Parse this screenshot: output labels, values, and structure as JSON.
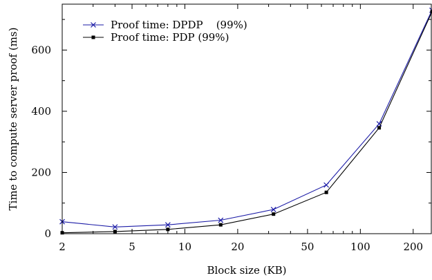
{
  "chart_data": {
    "type": "line",
    "xscale": "log",
    "xlabel": "Block size (KB)",
    "ylabel": "Time to compute server proof (ms)",
    "xlim": [
      2,
      256
    ],
    "ylim": [
      0,
      750
    ],
    "x_ticks": [
      {
        "value": 2,
        "label": "2"
      },
      {
        "value": 5,
        "label": "5"
      },
      {
        "value": 10,
        "label": "10"
      },
      {
        "value": 20,
        "label": "20"
      },
      {
        "value": 50,
        "label": "50"
      },
      {
        "value": 100,
        "label": "100"
      },
      {
        "value": 200,
        "label": "200"
      }
    ],
    "y_ticks": [
      {
        "value": 0,
        "label": "0"
      },
      {
        "value": 200,
        "label": "200"
      },
      {
        "value": 400,
        "label": "400"
      },
      {
        "value": 600,
        "label": "600"
      }
    ],
    "grid": false,
    "legend_position": "top-left",
    "series": [
      {
        "name": "Proof time: DPDP    (99%)",
        "marker": "x",
        "color": "#1a1aa6",
        "x": [
          2,
          4,
          8,
          16,
          32,
          64,
          128,
          256
        ],
        "y": [
          39,
          22,
          29,
          44,
          79,
          159,
          359,
          730
        ]
      },
      {
        "name": "Proof time: PDP (99%)",
        "marker": "square",
        "color": "#000000",
        "x": [
          2,
          4,
          8,
          16,
          32,
          64,
          128,
          256
        ],
        "y": [
          3,
          7,
          14,
          29,
          64,
          135,
          346,
          725
        ]
      }
    ]
  }
}
